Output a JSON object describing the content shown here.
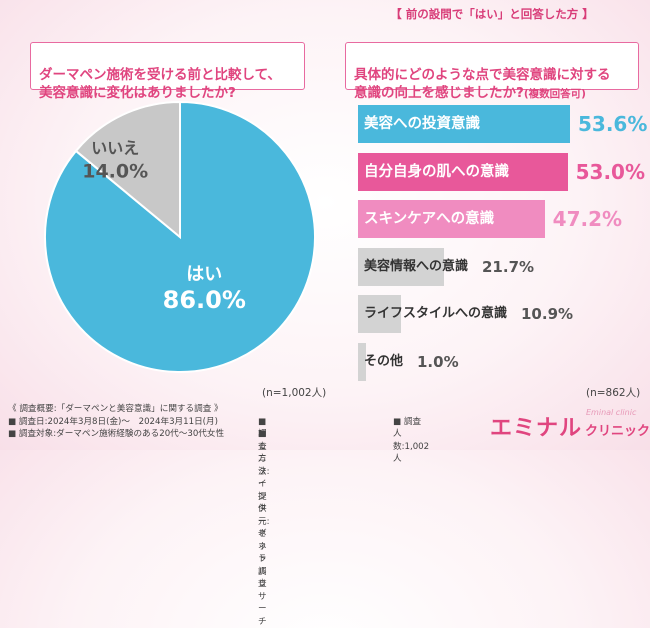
{
  "left": {
    "question": "ダーマペン施術を受ける前と比較して、\n美容意識に変化はありましたか?",
    "n": "(n=1,002人)"
  },
  "right": {
    "condition": "【 前の設問で「はい」と回答した方 】",
    "question": "具体的にどのような点で美容意識に対する\n意識の向上を感じましたか?",
    "question_note": "(複数回答可)",
    "n": "(n=862人)"
  },
  "chart_data": [
    {
      "type": "pie",
      "categories": [
        "はい",
        "いいえ"
      ],
      "values": [
        86.0,
        14.0
      ],
      "value_labels": [
        "86.0%",
        "14.0%"
      ],
      "colors": [
        "#4ab8dc",
        "#c8c8c8"
      ]
    },
    {
      "type": "bar",
      "orientation": "horizontal",
      "categories": [
        "美容への投資意識",
        "自分自身の肌への意識",
        "スキンケアへの意識",
        "美容情報への意識",
        "ライフスタイルへの意識",
        "その他"
      ],
      "values": [
        53.6,
        53.0,
        47.2,
        21.7,
        10.9,
        1.0
      ],
      "value_labels": [
        "53.6%",
        "53.0%",
        "47.2%",
        "21.7%",
        "10.9%",
        "1.0%"
      ],
      "colors": [
        "#4ab8dc",
        "#e8589a",
        "#f08cc0",
        "#d3d3d3",
        "#d3d3d3",
        "#d3d3d3"
      ]
    }
  ],
  "footer": {
    "overview": "《 調査概要:「ダーマペンと美容意識」に関する調査 》",
    "date": "■ 調査日:2024年3月8日(金)〜　2024年3月11日(月)",
    "method": "■ 調査方法:インターネット調査",
    "count": "■ 調査人数:1,002人",
    "target": "■ 調査対象:ダーマペン施術経験のある20代〜30代女性",
    "provider": "■ モニター提供元:ゼネラルリサーチ"
  },
  "logo": {
    "main": "エミナル",
    "sub": "Eminal clinic",
    "clinic": "クリニック"
  }
}
